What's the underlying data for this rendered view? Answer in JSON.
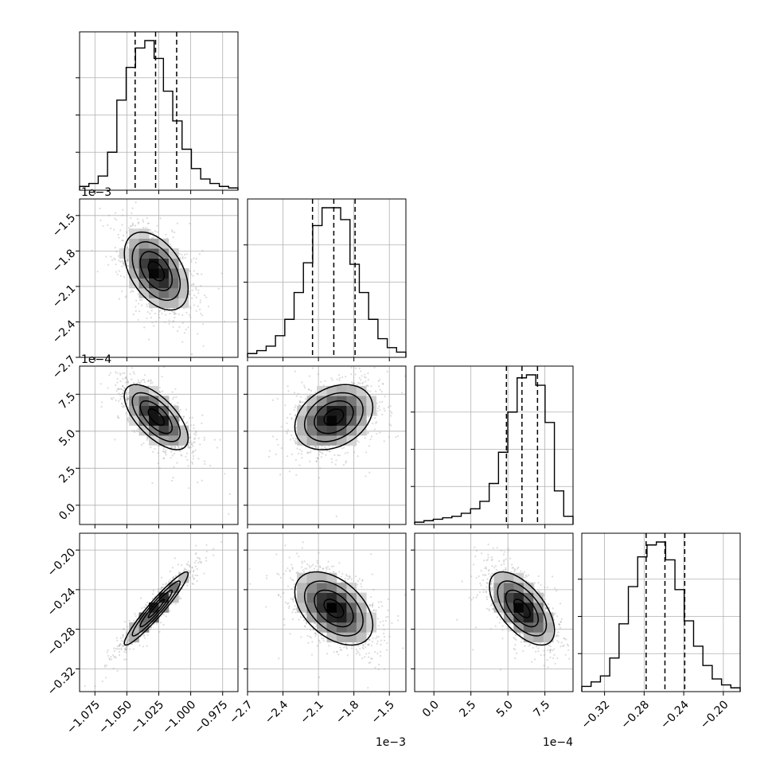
{
  "chart_data": {
    "type": "corner",
    "params": [
      {
        "range": [
          -1.087,
          -0.963
        ],
        "ticks": [
          -1.075,
          -1.05,
          -1.025,
          -1.0,
          -0.975
        ],
        "tick_labels": [
          "−1.075",
          "−1.050",
          "−1.025",
          "−1.000",
          "−0.975"
        ],
        "offset_text": "",
        "mean": -1.027,
        "sd": 0.0125,
        "quantiles": [
          -1.0435,
          -1.0275,
          -1.011
        ],
        "hist": [
          2,
          4,
          9,
          25,
          60,
          82,
          95,
          100,
          88,
          66,
          46,
          27,
          14,
          7,
          4,
          2,
          1
        ]
      },
      {
        "range": [
          -2.7,
          -1.36
        ],
        "ticks": [
          -2.7,
          -2.4,
          -2.1,
          -1.8,
          -1.5
        ],
        "tick_labels": [
          "−2.7",
          "−2.4",
          "−2.1",
          "−1.8",
          "−1.5"
        ],
        "offset_text": "1e−3",
        "mean": -1.97,
        "sd": 0.165,
        "quantiles": [
          -2.15,
          -1.97,
          -1.79
        ],
        "hist": [
          2,
          4,
          7,
          14,
          25,
          43,
          63,
          88,
          100,
          100,
          92,
          62,
          43,
          25,
          12,
          6,
          3
        ]
      },
      {
        "range": [
          -1.3,
          9.4
        ],
        "ticks": [
          0.0,
          2.5,
          5.0,
          7.5
        ],
        "tick_labels": [
          "0.0",
          "2.5",
          "5.0",
          "7.5"
        ],
        "offset_text": "1e−4",
        "mean": 5.95,
        "sd": 1.1,
        "quantiles": [
          4.9,
          5.95,
          7.0
        ],
        "hist": [
          1,
          2,
          3,
          4,
          5,
          7,
          10,
          15,
          27,
          48,
          75,
          98,
          100,
          93,
          68,
          22,
          5
        ]
      },
      {
        "range": [
          -0.343,
          -0.183
        ],
        "ticks": [
          -0.32,
          -0.28,
          -0.24,
          -0.2
        ],
        "tick_labels": [
          "−0.32",
          "−0.28",
          "−0.24",
          "−0.20"
        ],
        "offset_text": "",
        "mean": -0.259,
        "sd": 0.0185,
        "quantiles": [
          -0.278,
          -0.259,
          -0.239
        ],
        "hist": [
          3,
          6,
          10,
          22,
          45,
          70,
          90,
          98,
          100,
          88,
          68,
          47,
          30,
          17,
          8,
          4,
          2
        ]
      }
    ],
    "correlations": [
      [
        1.0,
        -0.45,
        -0.65,
        0.95
      ],
      [
        -0.45,
        1.0,
        0.3,
        -0.45
      ],
      [
        -0.65,
        0.3,
        1.0,
        -0.6
      ],
      [
        0.95,
        -0.45,
        -0.6,
        1.0
      ]
    ],
    "bins": 17,
    "grid": true
  }
}
